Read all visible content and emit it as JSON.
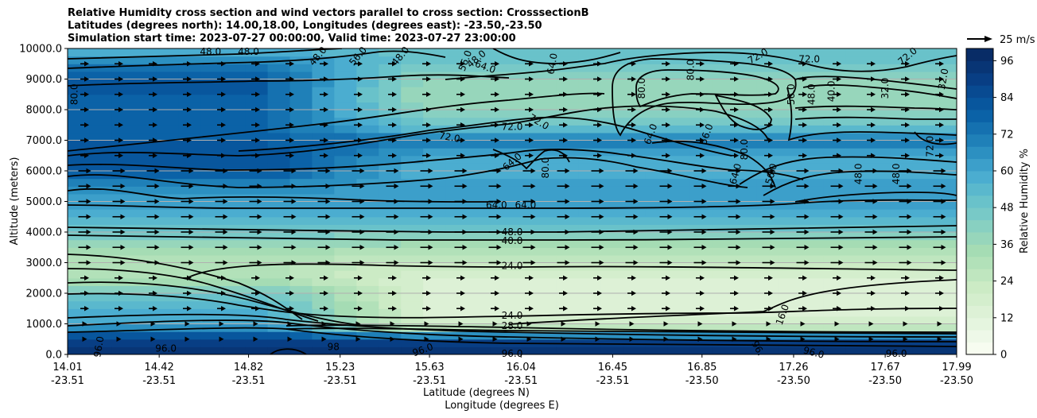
{
  "title_lines": [
    "Relative Humidity cross section and wind vectors parallel to cross section: CrosssectionB",
    "Latitudes (degrees north): 14.00,18.00, Longitudes (degrees east): -23.50,-23.50",
    "Simulation start time: 2023-07-27 00:00:00, Valid time: 2023-07-27 23:00:00"
  ],
  "quiver_key": "25 m/s",
  "colorbar_label": "Relative Humidity %",
  "colorbar_ticks": [
    "0",
    "12",
    "24",
    "36",
    "48",
    "60",
    "72",
    "84",
    "96"
  ],
  "colors": {
    "levels": [
      0,
      4,
      8,
      12,
      16,
      20,
      24,
      28,
      32,
      36,
      40,
      44,
      48,
      52,
      56,
      60,
      64,
      68,
      72,
      76,
      80,
      84,
      88,
      92,
      96,
      100
    ],
    "palette": [
      "#f7fcf0",
      "#eef8e8",
      "#e5f5df",
      "#ddf1d6",
      "#d4eecd",
      "#ccebc5",
      "#bfe6bf",
      "#b2e1b9",
      "#a5dcb4",
      "#97d6bb",
      "#88d0c1",
      "#78c9c7",
      "#69c2ca",
      "#5ab8cd",
      "#4badd0",
      "#3c9fca",
      "#2c90c1",
      "#1f80b8",
      "#1571b0",
      "#0b62a7",
      "#08569d",
      "#084a91",
      "#083e84",
      "#083575",
      "#082c66"
    ],
    "contour_line": "#000000",
    "arrow": "#000000"
  },
  "chart_data": {
    "type": "heatmap",
    "xlabel": "Latitude (degrees N)",
    "xlabel2": "Longitude (degrees E)",
    "ylabel": "Altitude (meters)",
    "ylim": [
      0,
      10000
    ],
    "y_ticks": [
      "0.0",
      "1000.0",
      "2000.0",
      "3000.0",
      "4000.0",
      "5000.0",
      "6000.0",
      "7000.0",
      "8000.0",
      "9000.0",
      "10000.0"
    ],
    "x_ticks": [
      {
        "lat": "14.01",
        "lon": "-23.51"
      },
      {
        "lat": "14.42",
        "lon": "-23.51"
      },
      {
        "lat": "14.82",
        "lon": "-23.51"
      },
      {
        "lat": "15.23",
        "lon": "-23.51"
      },
      {
        "lat": "15.63",
        "lon": "-23.51"
      },
      {
        "lat": "16.04",
        "lon": "-23.51"
      },
      {
        "lat": "16.45",
        "lon": "-23.51"
      },
      {
        "lat": "16.85",
        "lon": "-23.50"
      },
      {
        "lat": "17.26",
        "lon": "-23.50"
      },
      {
        "lat": "17.67",
        "lon": "-23.50"
      },
      {
        "lat": "17.99",
        "lon": "-23.50"
      }
    ],
    "colorbar_range": [
      0,
      100
    ],
    "grid": "horizontal",
    "rh_profile": {
      "altitudes": [
        0,
        500,
        800,
        1000,
        1500,
        2000,
        2500,
        3000,
        3500,
        4000,
        4500,
        5000,
        5500,
        6000,
        6500,
        7000,
        7500,
        8000,
        8500,
        9000,
        9500,
        10000
      ],
      "rh_west": [
        96,
        90,
        70,
        60,
        55,
        48,
        30,
        30,
        36,
        48,
        58,
        62,
        66,
        82,
        84,
        80,
        76,
        78,
        80,
        80,
        72,
        55
      ],
      "rh_east": [
        96,
        90,
        30,
        18,
        15,
        14,
        16,
        22,
        32,
        46,
        58,
        64,
        62,
        56,
        60,
        72,
        48,
        40,
        36,
        38,
        48,
        50
      ]
    },
    "contour_labels": [
      {
        "text": "96.0",
        "lat": 14.15,
        "alt": 250,
        "rot": -80
      },
      {
        "text": "96.0",
        "lat": 14.45,
        "alt": 200,
        "rot": 0
      },
      {
        "text": "96.0",
        "lat": 15.6,
        "alt": 150,
        "rot": -20
      },
      {
        "text": "98",
        "lat": 15.2,
        "alt": 250,
        "rot": 0
      },
      {
        "text": "96.0",
        "lat": 16.0,
        "alt": 20,
        "rot": 0
      },
      {
        "text": "96.",
        "lat": 17.1,
        "alt": 200,
        "rot": 60
      },
      {
        "text": "96.0",
        "lat": 17.35,
        "alt": 60,
        "rot": 15
      },
      {
        "text": "96.0",
        "lat": 17.72,
        "alt": 30,
        "rot": 0
      },
      {
        "text": "16.0",
        "lat": 17.21,
        "alt": 1300,
        "rot": -70
      },
      {
        "text": "24.0",
        "lat": 16.0,
        "alt": 1270,
        "rot": 0
      },
      {
        "text": "28.0",
        "lat": 16.0,
        "alt": 940,
        "rot": 0
      },
      {
        "text": "24.0",
        "lat": 16.0,
        "alt": 2890,
        "rot": 0
      },
      {
        "text": "40.0",
        "lat": 16.0,
        "alt": 3720,
        "rot": 0
      },
      {
        "text": "48.0",
        "lat": 16.0,
        "alt": 4000,
        "rot": 0
      },
      {
        "text": "64.0",
        "lat": 15.93,
        "alt": 4880,
        "rot": 0
      },
      {
        "text": "64.0",
        "lat": 16.06,
        "alt": 4880,
        "rot": 0
      },
      {
        "text": "64.0",
        "lat": 16.0,
        "alt": 6300,
        "rot": -40
      },
      {
        "text": "80.0",
        "lat": 16.15,
        "alt": 6100,
        "rot": -90
      },
      {
        "text": "72.0",
        "lat": 15.72,
        "alt": 7100,
        "rot": 10
      },
      {
        "text": "72.0",
        "lat": 16.0,
        "alt": 7440,
        "rot": 0
      },
      {
        "text": "72.0",
        "lat": 16.12,
        "alt": 7600,
        "rot": 30
      },
      {
        "text": "64.0",
        "lat": 16.62,
        "alt": 7200,
        "rot": -70
      },
      {
        "text": "56.0",
        "lat": 16.87,
        "alt": 7200,
        "rot": -70
      },
      {
        "text": "64.0",
        "lat": 17.0,
        "alt": 5900,
        "rot": -75
      },
      {
        "text": "56.0",
        "lat": 17.16,
        "alt": 5900,
        "rot": -75
      },
      {
        "text": "48.0",
        "lat": 17.55,
        "alt": 5900,
        "rot": -90
      },
      {
        "text": "48.0",
        "lat": 17.72,
        "alt": 5900,
        "rot": -90
      },
      {
        "text": "72.0",
        "lat": 17.87,
        "alt": 6800,
        "rot": -90
      },
      {
        "text": "80.0",
        "lat": 17.04,
        "alt": 6700,
        "rot": -90
      },
      {
        "text": "80.0",
        "lat": 16.58,
        "alt": 8700,
        "rot": -90
      },
      {
        "text": "80.0",
        "lat": 16.8,
        "alt": 9300,
        "rot": -90
      },
      {
        "text": "56.0",
        "lat": 17.25,
        "alt": 8500,
        "rot": -90
      },
      {
        "text": "48.0",
        "lat": 17.34,
        "alt": 8500,
        "rot": -90
      },
      {
        "text": "40.0",
        "lat": 17.43,
        "alt": 8600,
        "rot": -90
      },
      {
        "text": "32.0",
        "lat": 17.67,
        "alt": 8700,
        "rot": -90
      },
      {
        "text": "32.0",
        "lat": 17.93,
        "alt": 9000,
        "rot": -80
      },
      {
        "text": "72.0",
        "lat": 17.33,
        "alt": 9650,
        "rot": 0
      },
      {
        "text": "72.0",
        "lat": 17.1,
        "alt": 9750,
        "rot": -30
      },
      {
        "text": "72.0",
        "lat": 17.77,
        "alt": 9750,
        "rot": -40
      },
      {
        "text": "64.0",
        "lat": 15.88,
        "alt": 9400,
        "rot": 20
      },
      {
        "text": "64.0",
        "lat": 16.18,
        "alt": 9500,
        "rot": -80
      },
      {
        "text": "56.0",
        "lat": 15.79,
        "alt": 9600,
        "rot": -70
      },
      {
        "text": "48.0",
        "lat": 15.84,
        "alt": 9660,
        "rot": -40
      },
      {
        "text": "80.0",
        "lat": 14.04,
        "alt": 8500,
        "rot": -90
      },
      {
        "text": "48.0",
        "lat": 14.65,
        "alt": 9900,
        "rot": 0
      },
      {
        "text": "48.0",
        "lat": 14.82,
        "alt": 9900,
        "rot": 0
      },
      {
        "text": "48.0",
        "lat": 15.13,
        "alt": 9750,
        "rot": -50
      },
      {
        "text": "56.0",
        "lat": 15.31,
        "alt": 9750,
        "rot": -50
      },
      {
        "text": "48.0",
        "lat": 15.5,
        "alt": 9750,
        "rot": -50
      }
    ]
  }
}
